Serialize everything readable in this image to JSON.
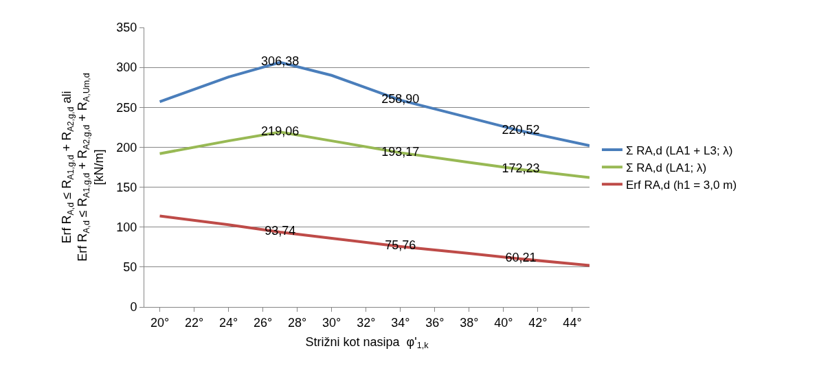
{
  "chart_data": {
    "type": "line",
    "xlabel": "Strižni kot nasipa  φ'$_{1,k}$",
    "ylabel": "Erf R$_{A,d}$ ≤ R$_{A1,g,d}$ + R$_{A2,g,d}$ ali\nErf R$_{A,d}$ ≤ R$_{A1,g,d}$ + R$_{A2,g,d}$ + R$_{A,Um,d}$\n[kN/m]",
    "x": [
      20,
      24,
      27,
      30,
      34,
      38,
      41,
      45
    ],
    "series": [
      {
        "name": "Σ RA,d (LA1 + L3; λ)",
        "color": "#4a7ebb",
        "values": [
          257,
          288,
          306.38,
          290,
          258.9,
          237,
          220.52,
          202
        ],
        "value_labels": [
          null,
          null,
          "306,38",
          null,
          "258,90",
          null,
          "220,52",
          null
        ]
      },
      {
        "name": "Σ RA,d (LA1; λ)",
        "color": "#98b954",
        "values": [
          192,
          208,
          219.06,
          208,
          193.17,
          181,
          172.23,
          162
        ],
        "value_labels": [
          null,
          null,
          "219,06",
          null,
          "193,17",
          null,
          "172,23",
          null
        ]
      },
      {
        "name": "Erf RA,d (h1 = 3,0 m)",
        "color": "#be4b48",
        "values": [
          114,
          103,
          93.74,
          86,
          75.76,
          67,
          60.21,
          52
        ],
        "value_labels": [
          null,
          null,
          "93,74",
          null,
          "75,76",
          null,
          "60,21",
          null
        ]
      }
    ],
    "xlim": [
      19.1,
      45
    ],
    "xticks": [
      {
        "value": 20,
        "label": "20°"
      },
      {
        "value": 22,
        "label": "22°"
      },
      {
        "value": 24,
        "label": "24°"
      },
      {
        "value": 26,
        "label": "26°"
      },
      {
        "value": 28,
        "label": "28°"
      },
      {
        "value": 30,
        "label": "30°"
      },
      {
        "value": 32,
        "label": "32°"
      },
      {
        "value": 34,
        "label": "34°"
      },
      {
        "value": 36,
        "label": "36°"
      },
      {
        "value": 38,
        "label": "38°"
      },
      {
        "value": 40,
        "label": "40°"
      },
      {
        "value": 42,
        "label": "42°"
      },
      {
        "value": 44,
        "label": "44°"
      }
    ],
    "ylim": [
      0,
      350
    ],
    "yticks": [
      0,
      50,
      100,
      150,
      200,
      250,
      300,
      350
    ],
    "grid": "y",
    "legend": "right",
    "marker": "none",
    "line_style": "solid"
  }
}
